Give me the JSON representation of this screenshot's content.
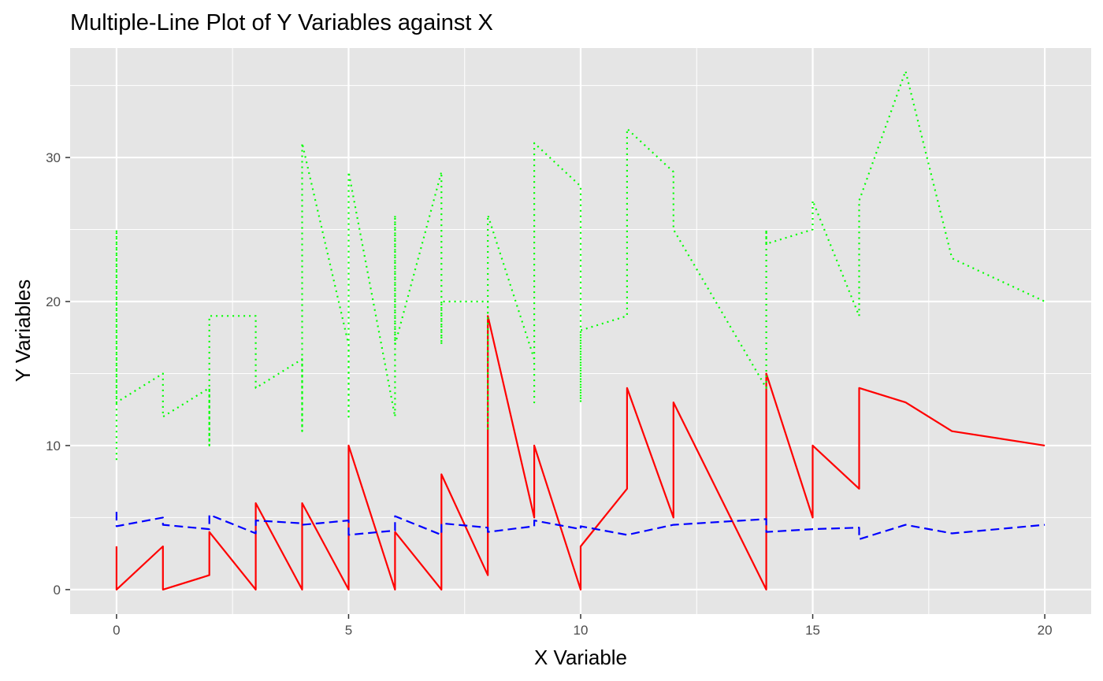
{
  "chart_data": {
    "type": "line",
    "title": "Multiple-Line Plot of Y Variables against X",
    "xlabel": "X Variable",
    "ylabel": "Y Variables",
    "xlim": [
      -1,
      21
    ],
    "ylim": [
      -1.7,
      37.6
    ],
    "x_ticks": [
      0,
      5,
      10,
      15,
      20
    ],
    "y_ticks": [
      0,
      10,
      20,
      30
    ],
    "x_tick_labels": [
      "0",
      "5",
      "10",
      "15",
      "20"
    ],
    "y_tick_labels": [
      "0",
      "10",
      "20",
      "30"
    ],
    "grid": true,
    "legend": "none",
    "panel_color": "#e5e5e5",
    "grid_color": "#ffffff",
    "series": [
      {
        "color": "#ff0000",
        "linestyle": "solid",
        "x": [
          0,
          0,
          1,
          1,
          2,
          2,
          2,
          3,
          3,
          4,
          4,
          5,
          5,
          6,
          6,
          7,
          7,
          8,
          8,
          9,
          9,
          10,
          10,
          11,
          11,
          12,
          12,
          14,
          14,
          15,
          15,
          16,
          16,
          17,
          18,
          20
        ],
        "y": [
          3,
          0,
          3,
          0,
          1,
          1,
          4,
          0,
          6,
          0,
          6,
          0,
          10,
          0,
          4,
          0,
          8,
          1,
          19,
          5,
          10,
          0,
          3,
          7,
          14,
          5,
          13,
          0,
          15,
          5,
          10,
          7,
          14,
          13,
          11,
          10
        ]
      },
      {
        "color": "#0000ff",
        "linestyle": "dashed",
        "x": [
          0,
          0,
          1,
          1,
          2,
          2,
          3,
          3,
          4,
          4,
          5,
          5,
          6,
          6,
          7,
          7,
          8,
          8,
          9,
          9,
          10,
          10,
          11,
          12,
          14,
          14,
          15,
          16,
          16,
          17,
          18,
          20
        ],
        "y": [
          5.4,
          4.4,
          5.0,
          4.5,
          4.2,
          5.2,
          3.9,
          4.8,
          4.6,
          4.5,
          4.8,
          3.8,
          4.1,
          5.1,
          3.8,
          4.6,
          4.3,
          4.0,
          4.4,
          4.8,
          4.2,
          4.4,
          3.8,
          4.5,
          4.9,
          4.0,
          4.2,
          4.3,
          3.5,
          4.5,
          3.9,
          4.5
        ]
      },
      {
        "color": "#00ff00",
        "linestyle": "dotted",
        "x": [
          0,
          0,
          0,
          1,
          1,
          2,
          2,
          2,
          3,
          3,
          3,
          4,
          4,
          4,
          5,
          5,
          5,
          6,
          6,
          6,
          7,
          7,
          7,
          8,
          8,
          8,
          9,
          9,
          9,
          10,
          10,
          10,
          11,
          11,
          12,
          12,
          14,
          14,
          14,
          15,
          15,
          16,
          16,
          17,
          18,
          20
        ],
        "y": [
          9,
          25,
          13,
          15,
          12,
          14,
          10,
          19,
          19,
          14,
          14,
          16,
          11,
          31,
          17,
          12,
          29,
          12,
          26,
          17,
          29,
          17,
          20,
          20,
          11,
          26,
          16,
          13,
          31,
          28,
          13,
          18,
          19,
          32,
          29,
          25,
          14,
          25,
          24,
          25,
          27,
          19,
          27,
          36,
          23,
          20
        ]
      }
    ]
  }
}
